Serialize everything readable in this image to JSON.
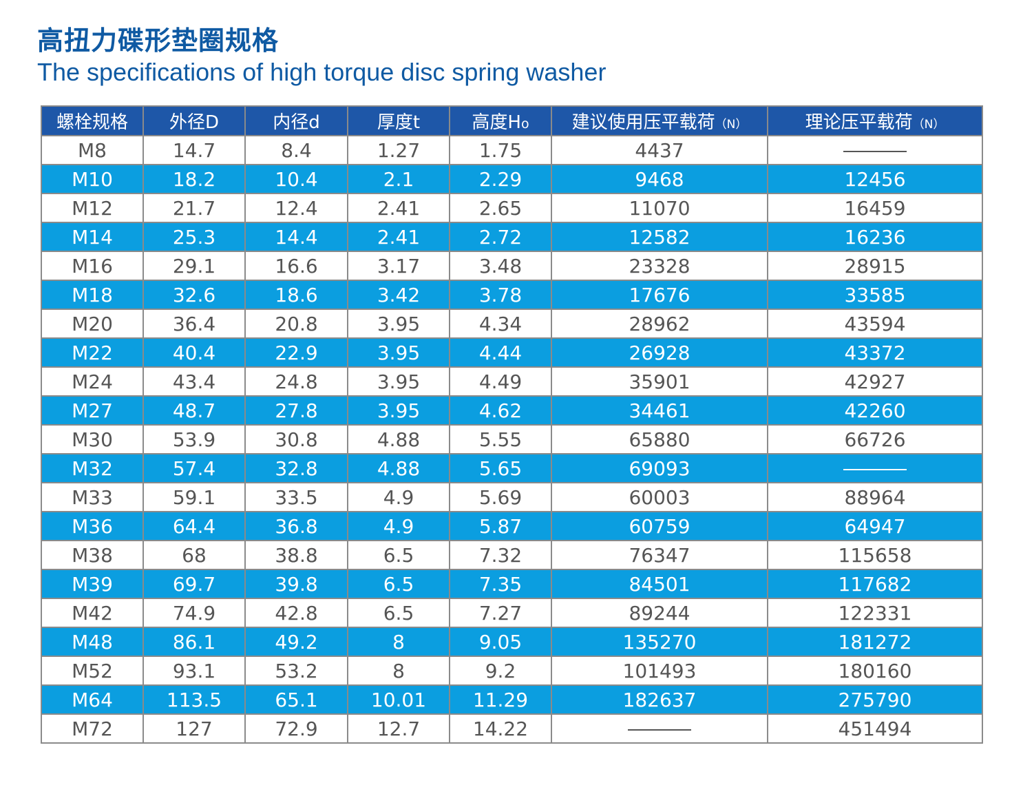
{
  "title_cn": "高扭力碟形垫圈规格",
  "title_en": "The specifications of high torque disc spring washer",
  "table": {
    "headers": [
      {
        "text": "螺栓规格"
      },
      {
        "text": "外径D"
      },
      {
        "text": "内径d"
      },
      {
        "text": "厚度t"
      },
      {
        "text": "高度H",
        "sub": "o"
      },
      {
        "text": "建议使用压平载荷",
        "unit": "（N）"
      },
      {
        "text": "理论压平载荷",
        "unit": "（N）"
      }
    ],
    "rows": [
      [
        "M8",
        "14.7",
        "8.4",
        "1.27",
        "1.75",
        "4437",
        "———"
      ],
      [
        "M10",
        "18.2",
        "10.4",
        "2.1",
        "2.29",
        "9468",
        "12456"
      ],
      [
        "M12",
        "21.7",
        "12.4",
        "2.41",
        "2.65",
        "11070",
        "16459"
      ],
      [
        "M14",
        "25.3",
        "14.4",
        "2.41",
        "2.72",
        "12582",
        "16236"
      ],
      [
        "M16",
        "29.1",
        "16.6",
        "3.17",
        "3.48",
        "23328",
        "28915"
      ],
      [
        "M18",
        "32.6",
        "18.6",
        "3.42",
        "3.78",
        "17676",
        "33585"
      ],
      [
        "M20",
        "36.4",
        "20.8",
        "3.95",
        "4.34",
        "28962",
        "43594"
      ],
      [
        "M22",
        "40.4",
        "22.9",
        "3.95",
        "4.44",
        "26928",
        "43372"
      ],
      [
        "M24",
        "43.4",
        "24.8",
        "3.95",
        "4.49",
        "35901",
        "42927"
      ],
      [
        "M27",
        "48.7",
        "27.8",
        "3.95",
        "4.62",
        "34461",
        "42260"
      ],
      [
        "M30",
        "53.9",
        "30.8",
        "4.88",
        "5.55",
        "65880",
        "66726"
      ],
      [
        "M32",
        "57.4",
        "32.8",
        "4.88",
        "5.65",
        "69093",
        "———"
      ],
      [
        "M33",
        "59.1",
        "33.5",
        "4.9",
        "5.69",
        "60003",
        "88964"
      ],
      [
        "M36",
        "64.4",
        "36.8",
        "4.9",
        "5.87",
        "60759",
        "64947"
      ],
      [
        "M38",
        "68",
        "38.8",
        "6.5",
        "7.32",
        "76347",
        "115658"
      ],
      [
        "M39",
        "69.7",
        "39.8",
        "6.5",
        "7.35",
        "84501",
        "117682"
      ],
      [
        "M42",
        "74.9",
        "42.8",
        "6.5",
        "7.27",
        "89244",
        "122331"
      ],
      [
        "M48",
        "86.1",
        "49.2",
        "8",
        "9.05",
        "135270",
        "181272"
      ],
      [
        "M52",
        "93.1",
        "53.2",
        "8",
        "9.2",
        "101493",
        "180160"
      ],
      [
        "M64",
        "113.5",
        "65.1",
        "10.01",
        "11.29",
        "182637",
        "275790"
      ],
      [
        "M72",
        "127",
        "72.9",
        "12.7",
        "14.22",
        "———",
        "451494"
      ]
    ]
  },
  "colors": {
    "title": "#0f5aa3",
    "header_bg": "#1e57a8",
    "highlight_row_bg": "#0b9ee0",
    "text": "#555555",
    "border": "#8a8a8a"
  }
}
